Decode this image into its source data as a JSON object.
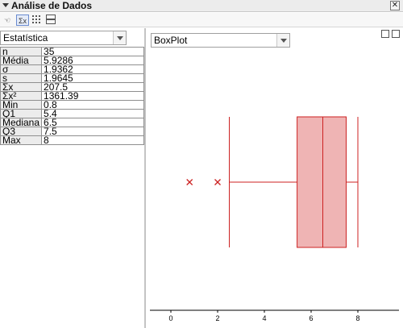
{
  "window": {
    "title": "Análise de Dados"
  },
  "toolbar": {
    "sigma_label": "Σx"
  },
  "left": {
    "selector": "Estatística",
    "stats": [
      {
        "label": "n",
        "value": "35"
      },
      {
        "label": "Média",
        "value": "5.9286"
      },
      {
        "label": "σ",
        "value": "1.9362"
      },
      {
        "label": "s",
        "value": "1.9645"
      },
      {
        "label": "Σx",
        "value": "207.5"
      },
      {
        "label": "Σx²",
        "value": "1361.39"
      },
      {
        "label": "Min",
        "value": "0.8"
      },
      {
        "label": "Q1",
        "value": "5.4"
      },
      {
        "label": "Mediana",
        "value": "6.5"
      },
      {
        "label": "Q3",
        "value": "7.5"
      },
      {
        "label": "Max",
        "value": "8"
      }
    ]
  },
  "right": {
    "selector": "BoxPlot"
  },
  "chart_data": {
    "type": "boxplot",
    "title": "",
    "xlabel": "",
    "ylabel": "",
    "xlim": [
      -1,
      10
    ],
    "xticks": [
      0,
      2,
      4,
      6,
      8
    ],
    "min_whisker": 2.5,
    "q1": 5.4,
    "median": 6.5,
    "q3": 7.5,
    "max_whisker": 8.0,
    "outliers": [
      0.8,
      2.0
    ],
    "color": "#cc2222",
    "fill": "#efb4b4"
  }
}
